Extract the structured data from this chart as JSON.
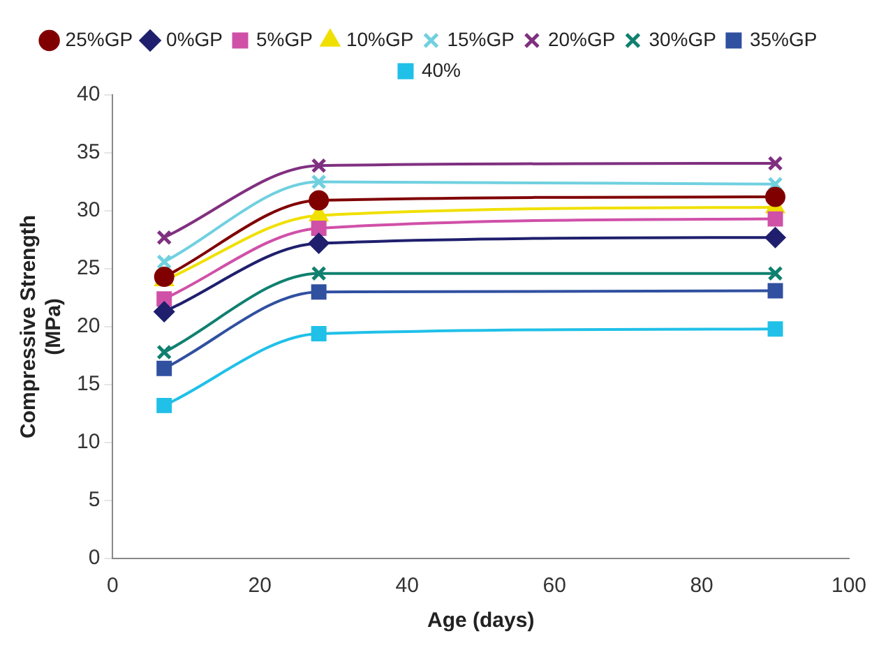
{
  "chart_data": {
    "type": "line",
    "xlabel": "Age (days)",
    "ylabel": "Compressive Strength (MPa)",
    "x": [
      7,
      28,
      90
    ],
    "xlim": [
      0,
      100
    ],
    "xticks": [
      0,
      20,
      40,
      60,
      80,
      100
    ],
    "ylim": [
      0,
      40
    ],
    "yticks": [
      0,
      5,
      10,
      15,
      20,
      25,
      30,
      35,
      40
    ],
    "grid": false,
    "legend": "top",
    "line_style": "solid",
    "series": [
      {
        "name": "0%GP",
        "color": "#1f1f6e",
        "marker": "diamond",
        "values": [
          21.3,
          27.2,
          27.7
        ]
      },
      {
        "name": "5%GP",
        "color": "#d050a8",
        "marker": "square",
        "values": [
          22.4,
          28.5,
          29.3
        ]
      },
      {
        "name": "10%GP",
        "color": "#f0e000",
        "marker": "triangle",
        "values": [
          24,
          29.6,
          30.3
        ]
      },
      {
        "name": "15%GP",
        "color": "#70d0e0",
        "marker": "cross",
        "values": [
          25.6,
          32.5,
          32.3
        ]
      },
      {
        "name": "20%GP",
        "color": "#803080",
        "marker": "cross",
        "values": [
          27.7,
          33.9,
          34.1
        ]
      },
      {
        "name": "25%GP",
        "color": "#800000",
        "marker": "circle",
        "values": [
          24.3,
          30.9,
          31.2
        ]
      },
      {
        "name": "30%GP",
        "color": "#108070",
        "marker": "cross",
        "values": [
          17.8,
          24.6,
          24.6
        ]
      },
      {
        "name": "35%GP",
        "color": "#3050a0",
        "marker": "square",
        "values": [
          16.4,
          23,
          23.1
        ]
      },
      {
        "name": "40%",
        "color": "#20c0e8",
        "marker": "square",
        "values": [
          13.2,
          19.4,
          19.8
        ]
      }
    ]
  }
}
